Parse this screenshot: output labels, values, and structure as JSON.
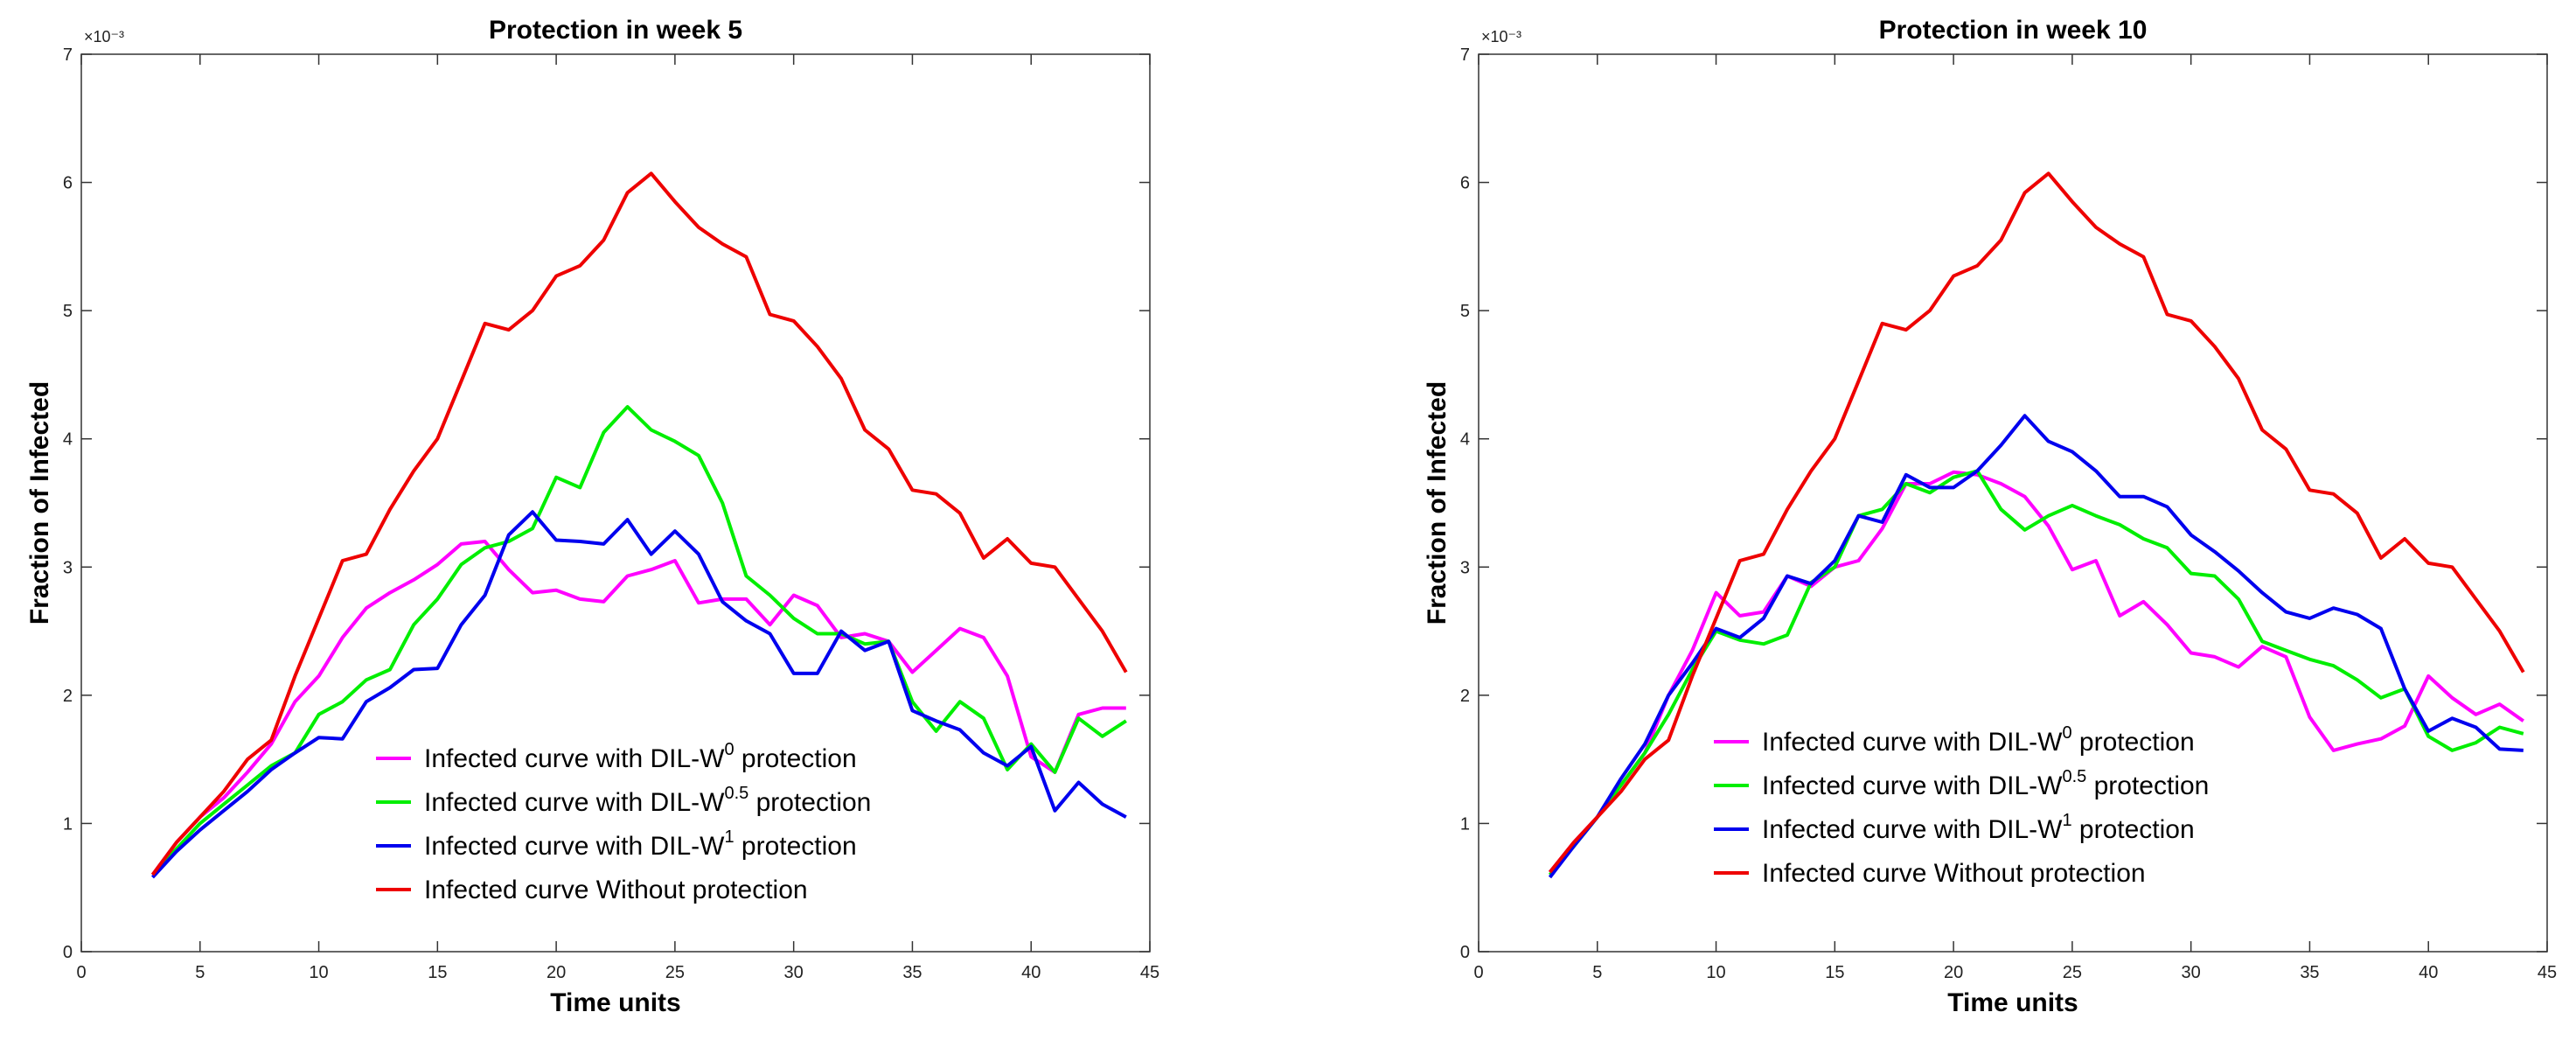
{
  "chart_data": [
    {
      "type": "line",
      "title": "Protection in week 5",
      "xlabel": "Time units",
      "ylabel": "Fraction of Infected",
      "y_exponent_label": "×10⁻³",
      "xlim": [
        0,
        45
      ],
      "ylim": [
        0,
        7
      ],
      "xticks": [
        0,
        5,
        10,
        15,
        20,
        25,
        30,
        35,
        40,
        45
      ],
      "yticks": [
        0,
        1,
        2,
        3,
        4,
        5,
        6,
        7
      ],
      "grid": false,
      "legend_position": "bottom-center",
      "x": [
        3,
        4,
        5,
        6,
        7,
        8,
        9,
        10,
        11,
        12,
        13,
        14,
        15,
        16,
        17,
        18,
        19,
        20,
        21,
        22,
        23,
        24,
        25,
        26,
        27,
        28,
        29,
        30,
        31,
        32,
        33,
        34,
        35,
        36,
        37,
        38,
        39,
        40,
        41,
        42,
        43,
        44
      ],
      "series": [
        {
          "name": "Infected curve with DIL-W0 protection",
          "legend_base": "Infected curve with DIL-W",
          "legend_sup": "0",
          "legend_tail": " protection",
          "color": "#ff00ff",
          "values": [
            0.6,
            0.85,
            1.05,
            1.2,
            1.4,
            1.62,
            1.95,
            2.15,
            2.45,
            2.68,
            2.8,
            2.9,
            3.02,
            3.18,
            3.2,
            2.98,
            2.8,
            2.82,
            2.75,
            2.73,
            2.93,
            2.98,
            3.05,
            2.72,
            2.75,
            2.75,
            2.55,
            2.78,
            2.7,
            2.45,
            2.48,
            2.42,
            2.18,
            2.35,
            2.52,
            2.45,
            2.15,
            1.52,
            1.4,
            1.85,
            1.9,
            1.9
          ]
        },
        {
          "name": "Infected curve with DIL-W0.5 protection",
          "legend_base": "Infected curve with DIL-W",
          "legend_sup": "0.5",
          "legend_tail": " protection",
          "color": "#00ee00",
          "values": [
            0.6,
            0.8,
            1.0,
            1.15,
            1.3,
            1.45,
            1.55,
            1.85,
            1.95,
            2.12,
            2.2,
            2.55,
            2.75,
            3.02,
            3.15,
            3.2,
            3.3,
            3.7,
            3.62,
            4.05,
            4.25,
            4.07,
            3.98,
            3.87,
            3.5,
            2.93,
            2.78,
            2.6,
            2.48,
            2.48,
            2.4,
            2.42,
            1.95,
            1.72,
            1.95,
            1.82,
            1.42,
            1.62,
            1.4,
            1.82,
            1.68,
            1.8
          ]
        },
        {
          "name": "Infected curve with DIL-W1 protection",
          "legend_base": "Infected curve with DIL-W",
          "legend_sup": "1",
          "legend_tail": " protection",
          "color": "#0000ee",
          "values": [
            0.58,
            0.78,
            0.95,
            1.1,
            1.25,
            1.42,
            1.55,
            1.67,
            1.66,
            1.95,
            2.06,
            2.2,
            2.21,
            2.55,
            2.78,
            3.25,
            3.43,
            3.21,
            3.2,
            3.18,
            3.37,
            3.1,
            3.28,
            3.1,
            2.73,
            2.58,
            2.48,
            2.17,
            2.17,
            2.5,
            2.35,
            2.42,
            1.88,
            1.8,
            1.73,
            1.55,
            1.45,
            1.6,
            1.1,
            1.32,
            1.15,
            1.05
          ]
        },
        {
          "name": "Infected curve Without protection",
          "legend_base": "Infected curve Without protection",
          "legend_sup": "",
          "legend_tail": "",
          "color": "#ee0000",
          "values": [
            0.6,
            0.85,
            1.05,
            1.25,
            1.5,
            1.65,
            2.15,
            2.6,
            3.05,
            3.1,
            3.45,
            3.75,
            4.0,
            4.45,
            4.9,
            4.85,
            5.0,
            5.27,
            5.35,
            5.55,
            5.92,
            6.07,
            5.85,
            5.65,
            5.52,
            5.42,
            4.97,
            4.92,
            4.72,
            4.47,
            4.07,
            3.92,
            3.6,
            3.57,
            3.42,
            3.07,
            3.22,
            3.03,
            3.0,
            2.75,
            2.5,
            2.18
          ]
        }
      ]
    },
    {
      "type": "line",
      "title": "Protection in week 10",
      "xlabel": "Time units",
      "ylabel": "Fraction of Infected",
      "y_exponent_label": "×10⁻³",
      "xlim": [
        0,
        45
      ],
      "ylim": [
        0,
        7
      ],
      "xticks": [
        0,
        5,
        10,
        15,
        20,
        25,
        30,
        35,
        40,
        45
      ],
      "yticks": [
        0,
        1,
        2,
        3,
        4,
        5,
        6,
        7
      ],
      "grid": false,
      "legend_position": "bottom-center",
      "x": [
        3,
        4,
        5,
        6,
        7,
        8,
        9,
        10,
        11,
        12,
        13,
        14,
        15,
        16,
        17,
        18,
        19,
        20,
        21,
        22,
        23,
        24,
        25,
        26,
        27,
        28,
        29,
        30,
        31,
        32,
        33,
        34,
        35,
        36,
        37,
        38,
        39,
        40,
        41,
        42,
        43,
        44
      ],
      "series": [
        {
          "name": "Infected curve with DIL-W0 protection",
          "legend_base": "Infected curve with DIL-W",
          "legend_sup": "0",
          "legend_tail": " protection",
          "color": "#ff00ff",
          "values": [
            0.62,
            0.85,
            1.05,
            1.3,
            1.55,
            2.0,
            2.35,
            2.8,
            2.62,
            2.65,
            2.93,
            2.85,
            3.0,
            3.05,
            3.3,
            3.65,
            3.65,
            3.74,
            3.72,
            3.65,
            3.55,
            3.32,
            2.98,
            3.05,
            2.62,
            2.73,
            2.55,
            2.33,
            2.3,
            2.22,
            2.38,
            2.3,
            1.83,
            1.57,
            1.62,
            1.66,
            1.76,
            2.15,
            1.98,
            1.85,
            1.93,
            1.8
          ]
        },
        {
          "name": "Infected curve with DIL-W0.5 protection",
          "legend_base": "Infected curve with DIL-W",
          "legend_sup": "0.5",
          "legend_tail": " protection",
          "color": "#00ee00",
          "values": [
            0.6,
            0.82,
            1.05,
            1.3,
            1.55,
            1.85,
            2.2,
            2.5,
            2.43,
            2.4,
            2.47,
            2.88,
            3.0,
            3.4,
            3.45,
            3.65,
            3.58,
            3.7,
            3.75,
            3.45,
            3.29,
            3.4,
            3.48,
            3.4,
            3.33,
            3.22,
            3.15,
            2.95,
            2.93,
            2.75,
            2.42,
            2.35,
            2.28,
            2.23,
            2.12,
            1.98,
            2.05,
            1.68,
            1.57,
            1.63,
            1.75,
            1.7
          ]
        },
        {
          "name": "Infected curve with DIL-W1 protection",
          "legend_base": "Infected curve with DIL-W",
          "legend_sup": "1",
          "legend_tail": " protection",
          "color": "#0000ee",
          "values": [
            0.58,
            0.82,
            1.05,
            1.35,
            1.62,
            2.0,
            2.25,
            2.52,
            2.45,
            2.6,
            2.93,
            2.87,
            3.05,
            3.4,
            3.35,
            3.72,
            3.62,
            3.62,
            3.75,
            3.95,
            4.18,
            3.98,
            3.9,
            3.75,
            3.55,
            3.55,
            3.47,
            3.25,
            3.12,
            2.97,
            2.8,
            2.65,
            2.6,
            2.68,
            2.63,
            2.52,
            2.05,
            1.72,
            1.82,
            1.75,
            1.58,
            1.57
          ]
        },
        {
          "name": "Infected curve Without protection",
          "legend_base": "Infected curve Without protection",
          "legend_sup": "",
          "legend_tail": "",
          "color": "#ee0000",
          "values": [
            0.62,
            0.85,
            1.05,
            1.25,
            1.5,
            1.65,
            2.15,
            2.6,
            3.05,
            3.1,
            3.45,
            3.75,
            4.0,
            4.45,
            4.9,
            4.85,
            5.0,
            5.27,
            5.35,
            5.55,
            5.92,
            6.07,
            5.85,
            5.65,
            5.52,
            5.42,
            4.97,
            4.92,
            4.72,
            4.47,
            4.07,
            3.92,
            3.6,
            3.57,
            3.42,
            3.07,
            3.22,
            3.03,
            3.0,
            2.75,
            2.5,
            2.18
          ]
        }
      ]
    }
  ]
}
